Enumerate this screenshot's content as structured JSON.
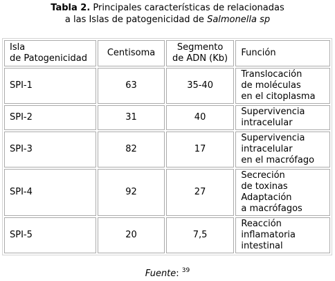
{
  "caption": {
    "label": "Tabla 2.",
    "line1_rest": " Principales características de relacionadas",
    "line2_start": "a las Islas de patogenicidad de ",
    "line2_italic": "Salmonella sp"
  },
  "table": {
    "headers": {
      "isla": [
        "Isla",
        "de Patogenicidad"
      ],
      "centisoma": [
        "Centisoma"
      ],
      "segmento": [
        "Segmento",
        "de ADN (Kb)"
      ],
      "funcion": [
        "Función"
      ]
    },
    "rows": [
      {
        "isla": "SPI-1",
        "centisoma": "63",
        "segmento": "35-40",
        "funcion": [
          "Translocación",
          "de moléculas",
          "en el citoplasma"
        ]
      },
      {
        "isla": "SPI-2",
        "centisoma": "31",
        "segmento": "40",
        "funcion": [
          "Supervivencia",
          "intracelular"
        ]
      },
      {
        "isla": "SPI-3",
        "centisoma": "82",
        "segmento": "17",
        "funcion": [
          "Supervivencia",
          "intracelular",
          "en el macrófago"
        ]
      },
      {
        "isla": "SPI-4",
        "centisoma": "92",
        "segmento": "27",
        "funcion": [
          "Secreción",
          "de toxinas",
          "Adaptación",
          "a macrófagos"
        ]
      },
      {
        "isla": "SPI-5",
        "centisoma": "20",
        "segmento": "7,5",
        "funcion": [
          "Reacción",
          "inflamatoria",
          "intestinal"
        ]
      }
    ]
  },
  "fuente": {
    "label": "Fuente",
    "separator": ": ",
    "ref": "39"
  }
}
